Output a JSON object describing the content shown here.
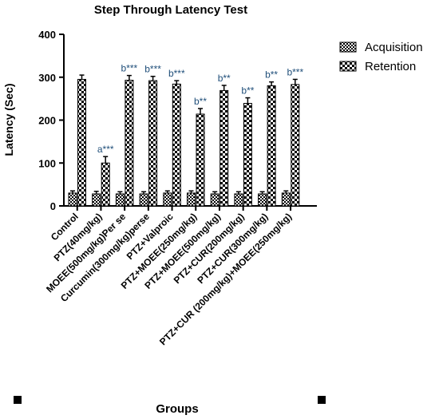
{
  "chart_data": {
    "type": "bar",
    "title": "Step Through Latency Test",
    "xlabel": "Groups",
    "ylabel": "Latency (Sec)",
    "ylim": [
      0,
      400
    ],
    "yticks": [
      "0",
      "100",
      "200",
      "300",
      "400"
    ],
    "categories": [
      "Control",
      "PTZ(40mg/kg)",
      "MOEE(500mg/kg)Per se",
      "Curcumin(300mg/kg)perse",
      "PTZ+Valproic",
      "PTZ+MOEE(250mg/kg)",
      "PTZ+MOEE(500mg/kg)",
      "PTZ+CUR(200mg/kg)",
      "PTZ+CUR(300mg/kg)",
      "PTZ+CUR (200mg/kg)+MOEE(250mg/kg)"
    ],
    "series": [
      {
        "name": "Acquisition",
        "pattern": "checker-fine",
        "values": [
          30,
          28,
          28,
          28,
          30,
          30,
          28,
          28,
          28,
          30
        ],
        "errors": [
          5,
          6,
          5,
          5,
          5,
          5,
          5,
          5,
          5,
          5
        ]
      },
      {
        "name": "Retention",
        "pattern": "checker-coarse",
        "values": [
          295,
          100,
          293,
          292,
          284,
          214,
          269,
          239,
          280,
          283
        ],
        "errors": [
          10,
          15,
          11,
          10,
          8,
          13,
          12,
          13,
          9,
          12
        ]
      }
    ],
    "annotations": [
      "",
      "a***",
      "b***",
      "b***",
      "b***",
      "b**",
      "b**",
      "b**",
      "b**",
      "b***"
    ],
    "annotation_color": "#1f4e79",
    "legend_position": "top-right",
    "grid": false
  }
}
